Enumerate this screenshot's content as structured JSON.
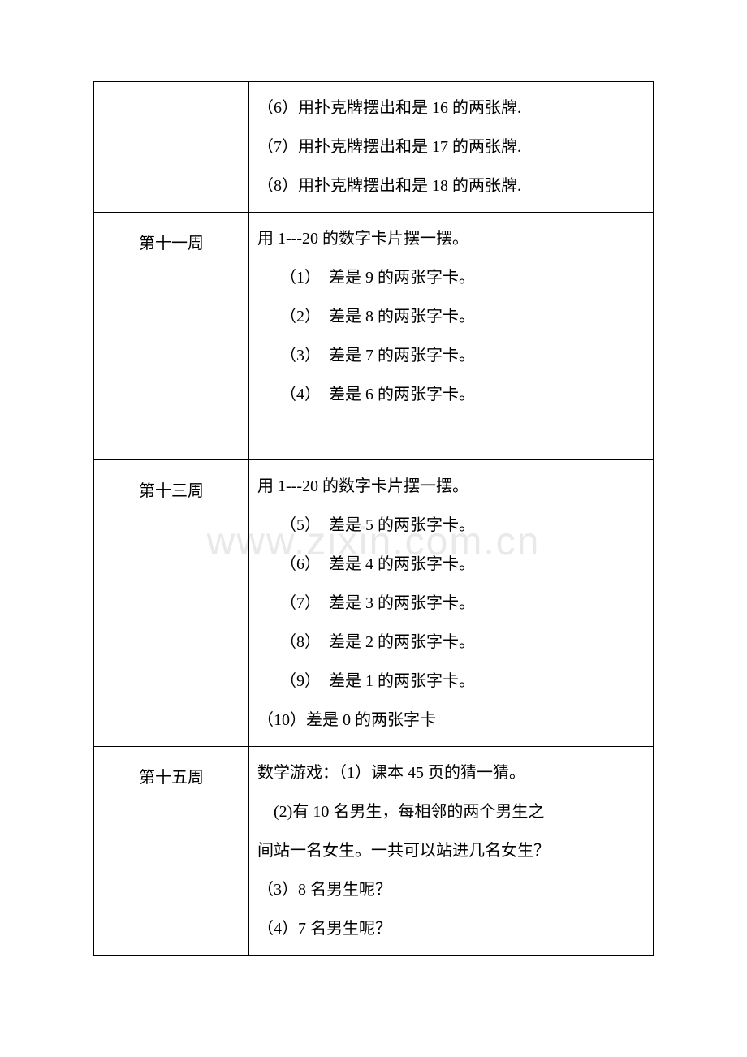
{
  "watermark": "www.zixin.com.cn",
  "table": {
    "rows": [
      {
        "left": "",
        "right_lines": [
          "（6）用扑克牌摆出和是 16 的两张牌.",
          "（7）用扑克牌摆出和是 17 的两张牌.",
          "（8）用扑克牌摆出和是 18 的两张牌.",
          ""
        ]
      },
      {
        "left": "第十一周",
        "right_intro": "用 1---20 的数字卡片摆一摆。",
        "right_items": [
          "（1）　差是 9 的两张字卡。",
          "（2）　差是 8 的两张字卡。",
          "（3）　差是 7 的两张字卡。",
          "（4）　差是 6 的两张字卡。"
        ],
        "right_trailing": ""
      },
      {
        "left": "第十三周",
        "right_intro": "用 1---20 的数字卡片摆一摆。",
        "right_items": [
          "（5）　差是 5 的两张字卡。",
          "（6）　差是 4 的两张字卡。",
          "（7）　差是 3 的两张字卡。",
          "（8）　差是 2 的两张字卡。",
          "（9）　差是 1 的两张字卡。"
        ],
        "right_last": "（10）差是 0 的两张字卡"
      },
      {
        "left": "第十五周",
        "right_lines": [
          "数学游戏：（1）课本 45 页的猜一猜。",
          "　(2)有 10 名男生，每相邻的两个男生之",
          "间站一名女生。一共可以站进几名女生？",
          "（3）8 名男生呢？",
          "（4）7 名男生呢？"
        ]
      }
    ]
  }
}
